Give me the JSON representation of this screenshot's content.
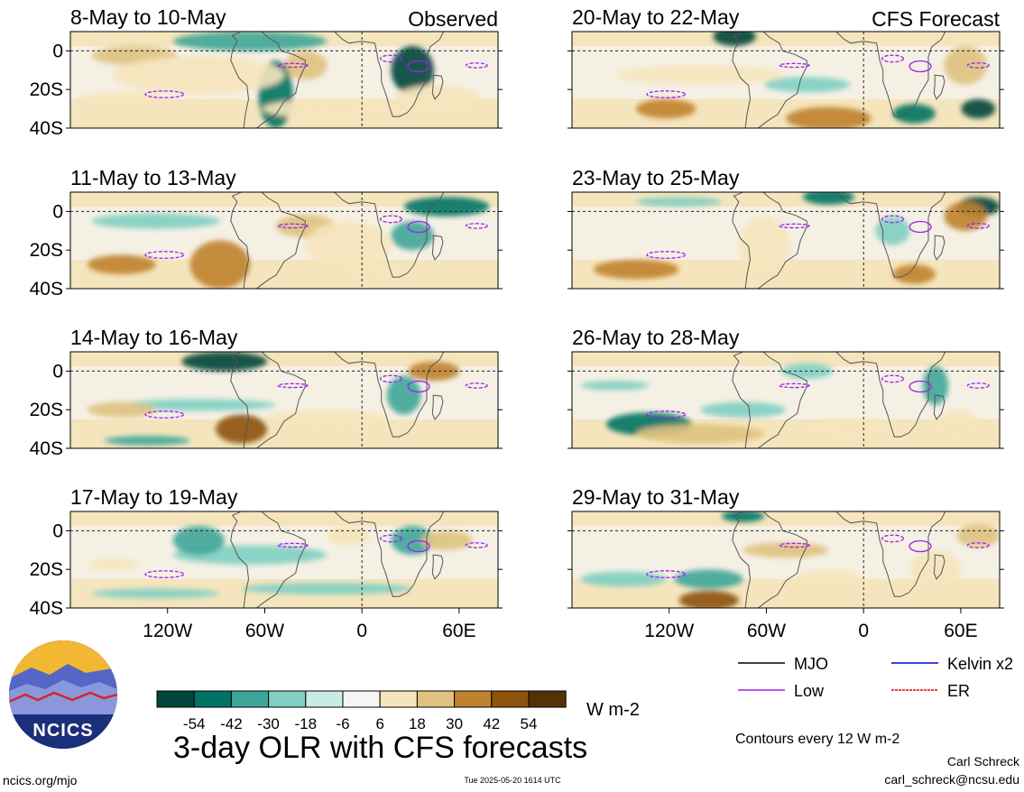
{
  "corner_labels": {
    "observed": "Observed",
    "forecast": "CFS Forecast"
  },
  "panels": [
    {
      "title": "8-May to 10-May",
      "source": "observed"
    },
    {
      "title": "11-May to 13-May",
      "source": "observed"
    },
    {
      "title": "14-May to 16-May",
      "source": "observed"
    },
    {
      "title": "17-May to 19-May",
      "source": "observed"
    },
    {
      "title": "20-May to 22-May",
      "source": "forecast"
    },
    {
      "title": "23-May to 25-May",
      "source": "forecast"
    },
    {
      "title": "26-May to 28-May",
      "source": "forecast"
    },
    {
      "title": "29-May to 31-May",
      "source": "forecast"
    }
  ],
  "axes": {
    "y_ticks": [
      "0",
      "20S",
      "40S"
    ],
    "x_ticks": [
      "120W",
      "60W",
      "0",
      "60E"
    ]
  },
  "colorbar": {
    "labels": [
      "-54",
      "-42",
      "-30",
      "-18",
      "-6",
      "6",
      "18",
      "30",
      "42",
      "54"
    ],
    "colors": [
      "#00463a",
      "#007464",
      "#3ea698",
      "#80cfc2",
      "#c7ebe5",
      "#f5f5f5",
      "#f5e5bd",
      "#dfc27f",
      "#bf822e",
      "#8d520c",
      "#553205"
    ],
    "units": "W m-2"
  },
  "legend": {
    "items": [
      {
        "label": "MJO",
        "color": "#000000",
        "style": "solid"
      },
      {
        "label": "Kelvin x2",
        "color": "#0000e6",
        "style": "solid"
      },
      {
        "label": "Low",
        "color": "#a020f0",
        "style": "solid"
      },
      {
        "label": "ER",
        "color": "#e60000",
        "style": "dashed"
      }
    ],
    "contour_note": "Contours every 12 W m-2"
  },
  "logo_text": "NCICS",
  "main_title": "3-day OLR with CFS forecasts",
  "footer": {
    "left": "ncics.org/mjo",
    "center": "Tue 2025-05-20 1614 UTC",
    "author": "Carl Schreck",
    "email": "carl_schreck@ncsu.edu"
  }
}
